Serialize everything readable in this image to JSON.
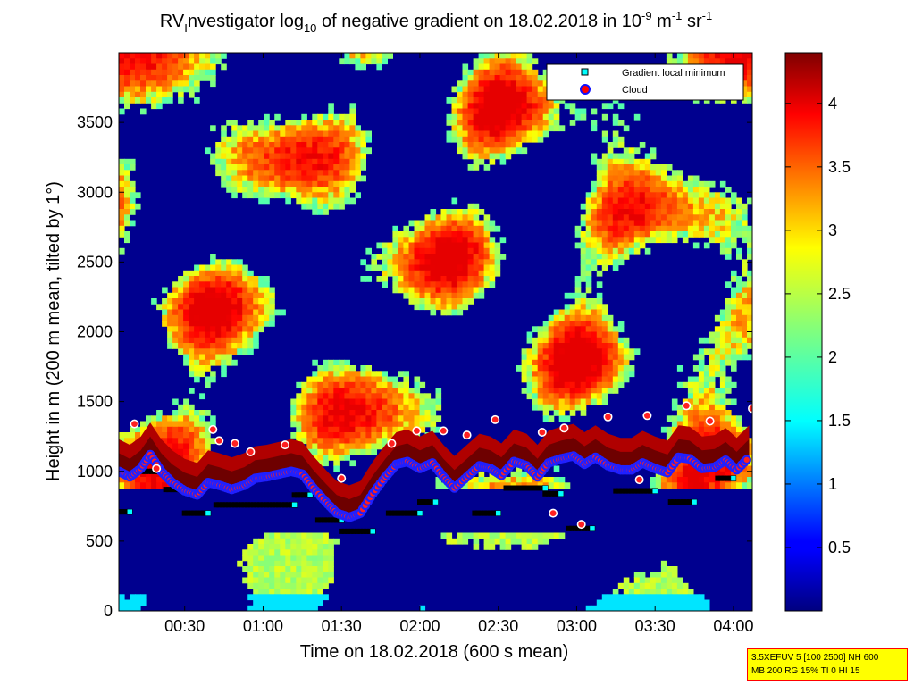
{
  "chart_data": {
    "type": "heatmap",
    "title_parts": {
      "a": "RV",
      "a_sub": "I",
      "b": "nvestigator log",
      "b_sub": "10",
      "c": " of negative gradient on 18.02.2018 in 10",
      "c_sup": "-9",
      "d": " m",
      "d_sup": "-1",
      "e": " sr",
      "e_sup": "-1"
    },
    "xlabel": "Time on 18.02.2018 (600 s mean)",
    "ylabel": "Height in m (200 m mean, tilted by 1°)",
    "x_unit": "hours after 00:00",
    "xlim": [
      0.08,
      4.12
    ],
    "ylim": [
      0,
      4000
    ],
    "x_ticks": [
      {
        "value": 0.5,
        "label": "00:30"
      },
      {
        "value": 1.0,
        "label": "01:00"
      },
      {
        "value": 1.5,
        "label": "01:30"
      },
      {
        "value": 2.0,
        "label": "02:00"
      },
      {
        "value": 2.5,
        "label": "02:30"
      },
      {
        "value": 3.0,
        "label": "03:00"
      },
      {
        "value": 3.5,
        "label": "03:30"
      },
      {
        "value": 4.0,
        "label": "04:00"
      }
    ],
    "y_ticks": [
      {
        "value": 0,
        "label": "0"
      },
      {
        "value": 500,
        "label": "500"
      },
      {
        "value": 1000,
        "label": "1000"
      },
      {
        "value": 1500,
        "label": "1500"
      },
      {
        "value": 2000,
        "label": "2000"
      },
      {
        "value": 2500,
        "label": "2500"
      },
      {
        "value": 3000,
        "label": "3000"
      },
      {
        "value": 3500,
        "label": "3500"
      }
    ],
    "colorbar": {
      "range": [
        0,
        4.4
      ],
      "ticks": [
        {
          "value": 0.5,
          "label": "0.5"
        },
        {
          "value": 1.0,
          "label": "1"
        },
        {
          "value": 1.5,
          "label": "1.5"
        },
        {
          "value": 2.0,
          "label": "2"
        },
        {
          "value": 2.5,
          "label": "2.5"
        },
        {
          "value": 3.0,
          "label": "3"
        },
        {
          "value": 3.5,
          "label": "3.5"
        },
        {
          "value": 4.0,
          "label": "4"
        }
      ],
      "colormap": "jet"
    },
    "legend": {
      "position": "top-right",
      "entries": [
        {
          "label": "Gradient local minimum",
          "marker": "square",
          "color": "#00ffff"
        },
        {
          "label": "Cloud",
          "marker": "circle",
          "color": "#ff0000"
        }
      ]
    },
    "cloud_base": {
      "x": [
        0.08,
        0.15,
        0.22,
        0.28,
        0.35,
        0.42,
        0.5,
        0.58,
        0.65,
        0.72,
        0.8,
        0.88,
        0.95,
        1.02,
        1.1,
        1.18,
        1.25,
        1.32,
        1.4,
        1.47,
        1.55,
        1.62,
        1.7,
        1.78,
        1.85,
        1.92,
        2.0,
        2.08,
        2.15,
        2.22,
        2.3,
        2.38,
        2.45,
        2.52,
        2.6,
        2.68,
        2.75,
        2.82,
        2.9,
        2.98,
        3.05,
        3.12,
        3.2,
        3.28,
        3.35,
        3.42,
        3.5,
        3.58,
        3.65,
        3.72,
        3.8,
        3.88,
        3.95,
        4.02,
        4.1
      ],
      "y": [
        1000,
        960,
        1020,
        1120,
        1000,
        920,
        860,
        830,
        920,
        900,
        870,
        900,
        950,
        960,
        980,
        1000,
        980,
        880,
        780,
        700,
        670,
        700,
        840,
        960,
        1050,
        1070,
        1020,
        1060,
        960,
        880,
        960,
        1040,
        1020,
        970,
        1070,
        1040,
        960,
        1060,
        1090,
        1110,
        1050,
        1100,
        1040,
        1010,
        1010,
        1060,
        1020,
        990,
        1100,
        1090,
        1020,
        1030,
        1080,
        1010,
        1100
      ]
    },
    "gradient_minimum_segments": [
      {
        "x": [
          0.08,
          0.15
        ],
        "y": 710
      },
      {
        "x": [
          0.23,
          0.35
        ],
        "y": 1000
      },
      {
        "x": [
          0.38,
          0.5
        ],
        "y": 870
      },
      {
        "x": [
          0.5,
          0.65
        ],
        "y": 700
      },
      {
        "x": [
          0.7,
          1.2
        ],
        "y": 760
      },
      {
        "x": [
          1.2,
          1.3
        ],
        "y": 830
      },
      {
        "x": [
          1.35,
          1.5
        ],
        "y": 650
      },
      {
        "x": [
          1.5,
          1.7
        ],
        "y": 570
      },
      {
        "x": [
          1.8,
          2.0
        ],
        "y": 700
      },
      {
        "x": [
          2.0,
          2.1
        ],
        "y": 780
      },
      {
        "x": [
          2.35,
          2.5
        ],
        "y": 700
      },
      {
        "x": [
          2.55,
          2.8
        ],
        "y": 880
      },
      {
        "x": [
          2.8,
          2.9
        ],
        "y": 840
      },
      {
        "x": [
          2.95,
          3.1
        ],
        "y": 590
      },
      {
        "x": [
          3.25,
          3.5
        ],
        "y": 860
      },
      {
        "x": [
          3.6,
          3.75
        ],
        "y": 780
      },
      {
        "x": [
          3.9,
          4.0
        ],
        "y": 950
      }
    ],
    "isolated_clouds": [
      {
        "x": 0.18,
        "y": 1340
      },
      {
        "x": 0.32,
        "y": 1020
      },
      {
        "x": 0.68,
        "y": 1300
      },
      {
        "x": 0.72,
        "y": 1220
      },
      {
        "x": 0.82,
        "y": 1200
      },
      {
        "x": 0.92,
        "y": 1140
      },
      {
        "x": 1.14,
        "y": 1190
      },
      {
        "x": 1.82,
        "y": 1200
      },
      {
        "x": 1.98,
        "y": 1290
      },
      {
        "x": 2.15,
        "y": 1290
      },
      {
        "x": 2.3,
        "y": 1260
      },
      {
        "x": 2.48,
        "y": 1370
      },
      {
        "x": 2.78,
        "y": 1280
      },
      {
        "x": 2.92,
        "y": 1310
      },
      {
        "x": 3.2,
        "y": 1390
      },
      {
        "x": 3.45,
        "y": 1400
      },
      {
        "x": 3.7,
        "y": 1470
      },
      {
        "x": 3.85,
        "y": 1360
      },
      {
        "x": 4.12,
        "y": 1450
      },
      {
        "x": 1.5,
        "y": 950
      },
      {
        "x": 2.85,
        "y": 700
      },
      {
        "x": 3.03,
        "y": 620
      },
      {
        "x": 3.4,
        "y": 940
      }
    ]
  },
  "info_box": {
    "line1": "3.5XEFUV 5 [100 2500] NH 600",
    "line2": "MB 200 RG 15% TI 0 HI 15"
  }
}
